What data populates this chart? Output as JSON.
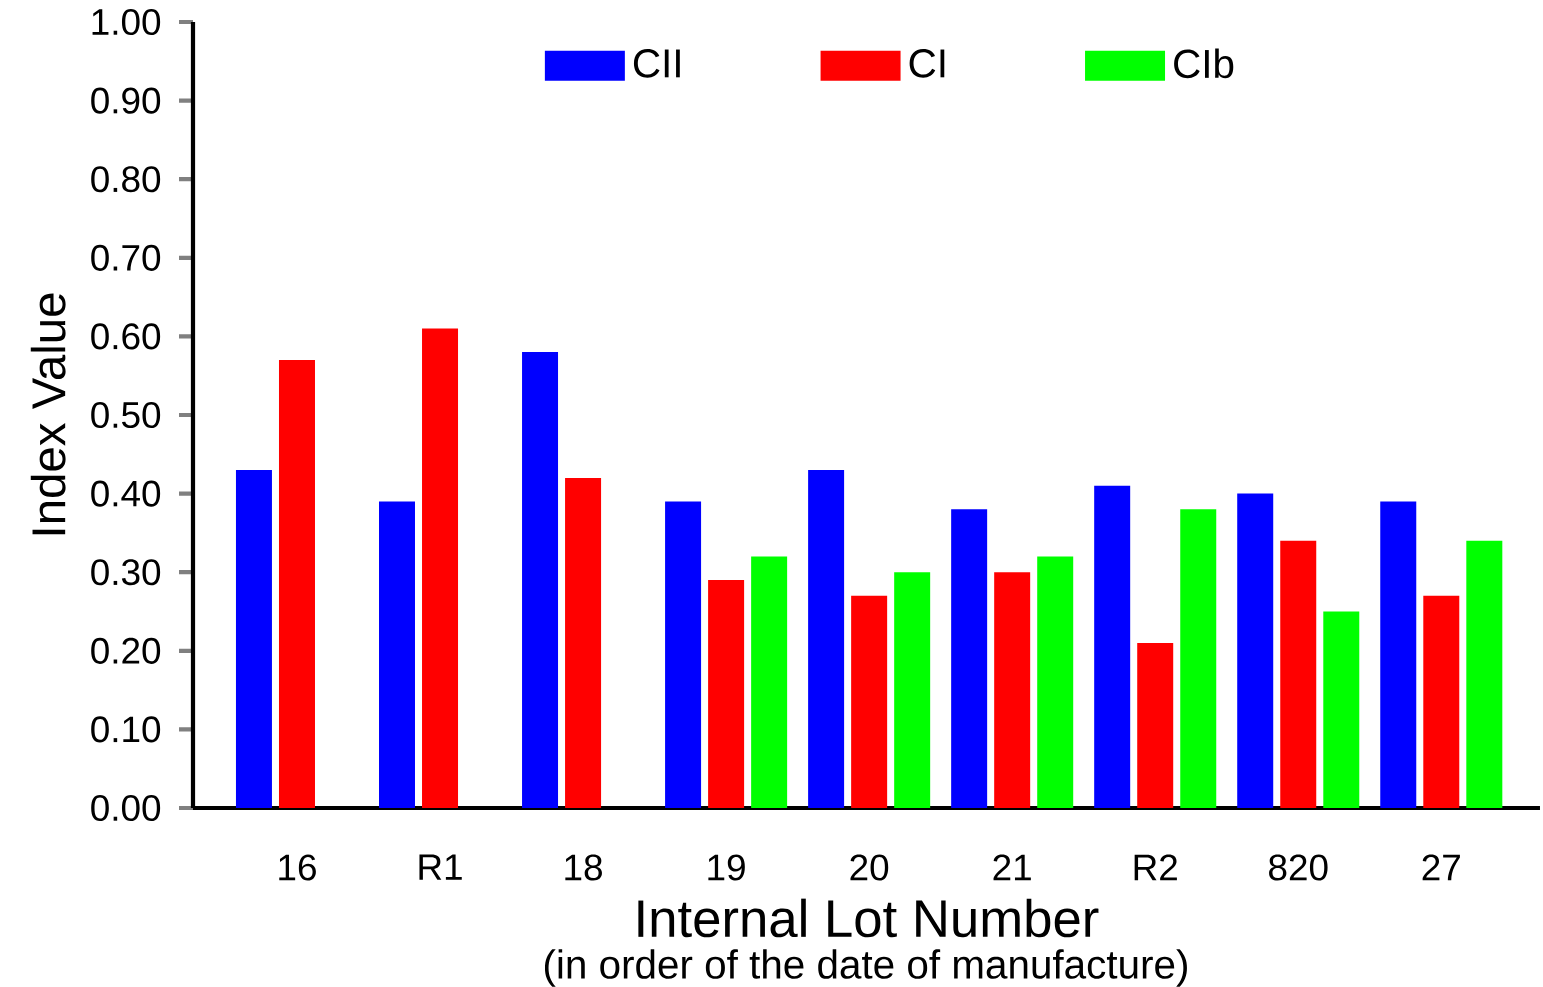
{
  "chart_data": {
    "type": "bar",
    "categories": [
      "16",
      "R1",
      "18",
      "19",
      "20",
      "21",
      "R2",
      "820",
      "27"
    ],
    "series": [
      {
        "name": "CII",
        "color": "#0000ff",
        "values": [
          0.43,
          0.39,
          0.58,
          0.39,
          0.43,
          0.38,
          0.41,
          0.4,
          0.39
        ]
      },
      {
        "name": "CI",
        "color": "#ff0000",
        "values": [
          0.57,
          0.61,
          0.42,
          0.29,
          0.27,
          0.3,
          0.21,
          0.34,
          0.27
        ]
      },
      {
        "name": "CIb",
        "color": "#00ff00",
        "values": [
          0,
          0,
          0,
          0.32,
          0.3,
          0.32,
          0.38,
          0.25,
          0.34
        ]
      }
    ],
    "xlabel": "Internal Lot Number",
    "ylabel": "Index Value",
    "annotations": [
      "(in order of the date of manufacture)"
    ],
    "ylim": [
      0,
      1
    ],
    "yticks": [
      {
        "value": 0,
        "label": "0.00"
      },
      {
        "value": 0.1,
        "label": "0.10"
      },
      {
        "value": 0.2,
        "label": "0.20"
      },
      {
        "value": 0.3,
        "label": "0.30"
      },
      {
        "value": 0.4,
        "label": "0.40"
      },
      {
        "value": 0.5,
        "label": "0.50"
      },
      {
        "value": 0.6,
        "label": "0.60"
      },
      {
        "value": 0.7,
        "label": "0.70"
      },
      {
        "value": 0.8,
        "label": "0.80"
      },
      {
        "value": 0.9,
        "label": "0.90"
      },
      {
        "value": 1,
        "label": "1.00"
      }
    ],
    "legend": "top",
    "grid": false
  }
}
